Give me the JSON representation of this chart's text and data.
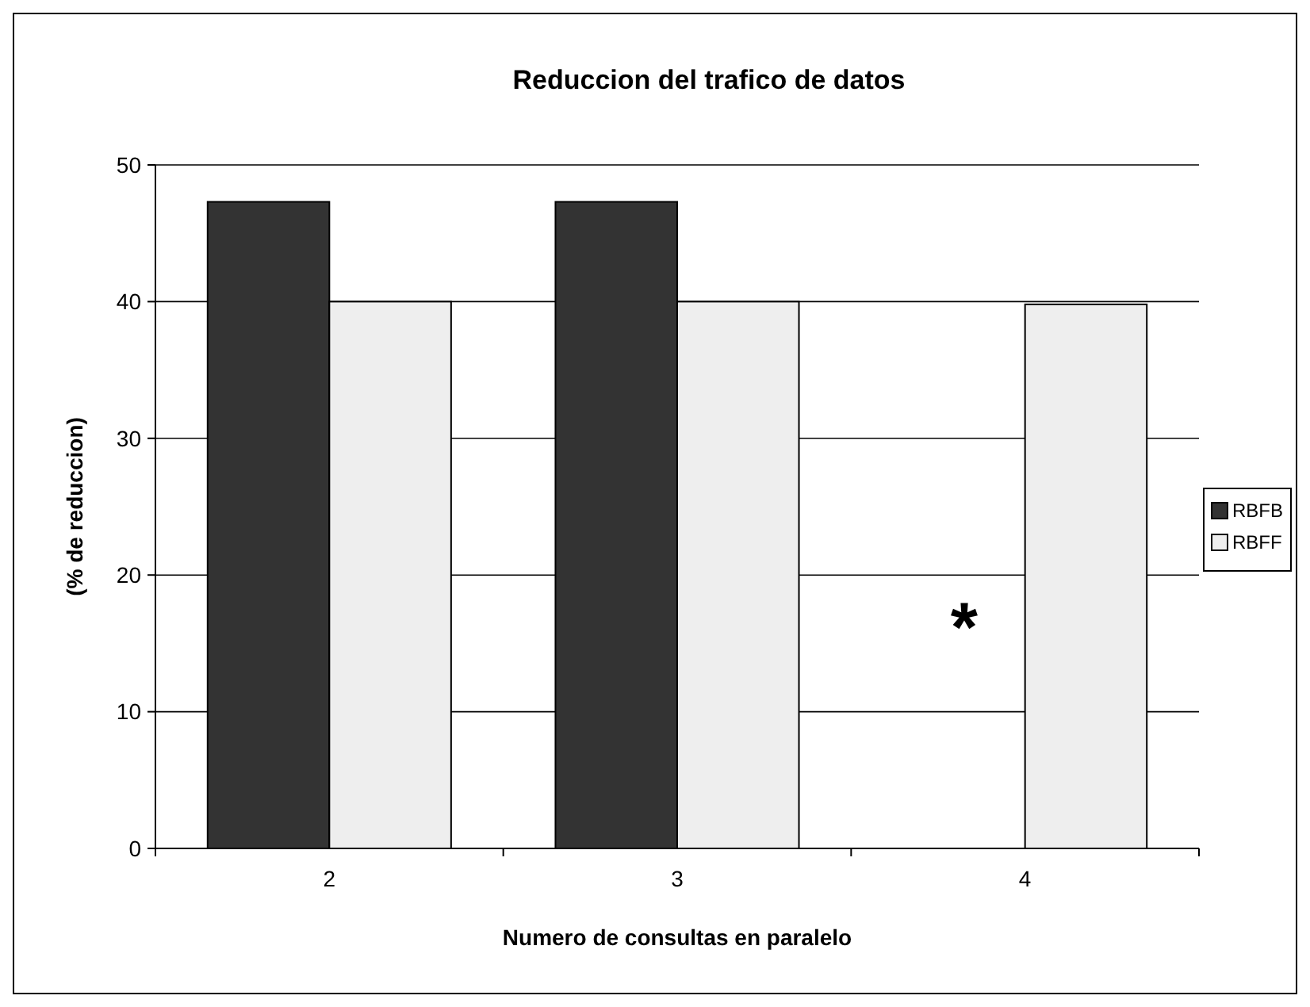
{
  "chart_data": {
    "type": "bar",
    "title": "Reduccion del trafico de datos",
    "xlabel": "Numero de consultas en paralelo",
    "ylabel": "(% de reduccion)",
    "categories": [
      "2",
      "3",
      "4"
    ],
    "series": [
      {
        "name": "RBFB",
        "color": "#333333",
        "values": [
          47.3,
          47.3,
          null
        ]
      },
      {
        "name": "RBFF",
        "color": "#eeeeee",
        "values": [
          40,
          40,
          39.8
        ]
      }
    ],
    "ylim": [
      0,
      50
    ],
    "yticks": [
      0,
      10,
      20,
      30,
      40,
      50
    ],
    "grid": "y",
    "legend": "right",
    "annotations": [
      {
        "text": "*",
        "x": "4",
        "y": 18
      }
    ]
  }
}
